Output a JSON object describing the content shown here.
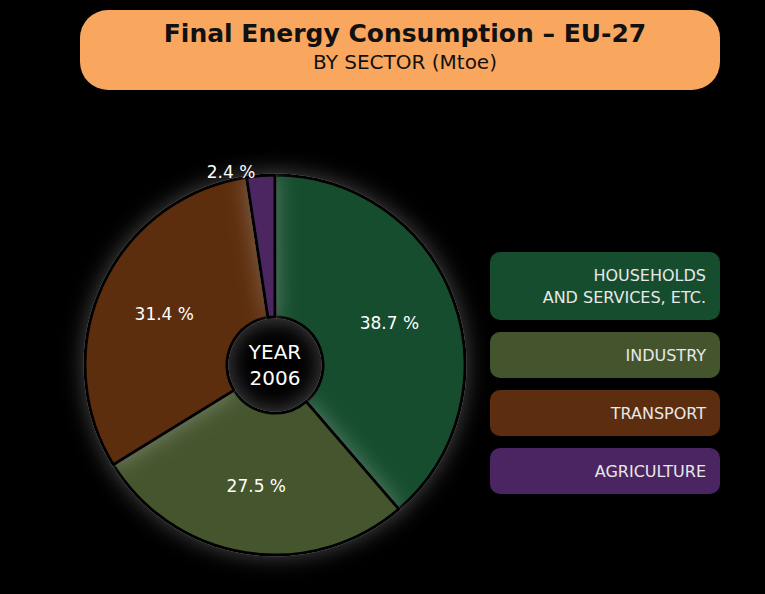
{
  "chart_data": {
    "type": "pie",
    "title": "Final Energy Consumption – EU-27",
    "subtitle": "BY SECTOR (Mtoe)",
    "annotation": "YEAR\n2006",
    "categories": [
      "HOUSEHOLDS\nAND SERVICES, ETC.",
      "INDUSTRY",
      "TRANSPORT",
      "AGRICULTURE"
    ],
    "values": [
      38.7,
      27.5,
      31.4,
      2.4
    ],
    "value_labels": [
      "38.7 %",
      "27.5 %",
      "31.4 %",
      "2.4 %"
    ],
    "colors": [
      "#174d2f",
      "#44552e",
      "#5c2d0f",
      "#4b2561"
    ],
    "data_labels": true,
    "legend": "right"
  }
}
